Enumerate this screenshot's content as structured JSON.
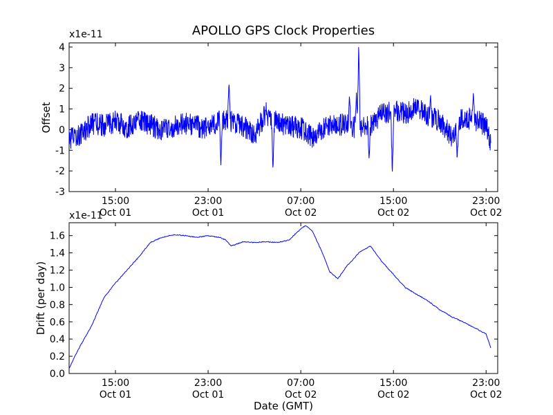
{
  "chart_data": [
    {
      "type": "line",
      "title": "APOLLO GPS Clock Properties",
      "xlabel": "",
      "ylabel": "Offset",
      "y_multiplier_label": "x1e-11",
      "ylim": [
        -3,
        4.2
      ],
      "yticks": [
        -3,
        -2,
        -1,
        0,
        1,
        2,
        3,
        4
      ],
      "xlim": [
        "2013-10-01 11:00",
        "2013-10-03 00:00"
      ],
      "xticks": [
        {
          "time": "2013-10-01 15:00",
          "label_time": "15:00",
          "label_date": "Oct 01"
        },
        {
          "time": "2013-10-01 23:00",
          "label_time": "23:00",
          "label_date": "Oct 01"
        },
        {
          "time": "2013-10-02 07:00",
          "label_time": "07:00",
          "label_date": "Oct 02"
        },
        {
          "time": "2013-10-02 15:00",
          "label_time": "15:00",
          "label_date": "Oct 02"
        },
        {
          "time": "2013-10-02 23:00",
          "label_time": "23:00",
          "label_date": "Oct 02"
        }
      ],
      "color": "#0000ff",
      "x_hours": [
        0,
        1,
        2,
        3,
        4,
        5,
        6,
        7,
        8,
        9,
        10,
        11,
        12,
        13,
        14,
        15,
        16,
        17,
        18,
        19,
        20,
        21,
        22,
        23,
        24,
        25,
        26,
        27,
        28,
        29,
        30,
        31,
        32,
        33,
        34,
        35,
        36,
        36.4
      ],
      "series_offset_smoothed": [
        -0.5,
        -0.2,
        0.3,
        0.2,
        0.4,
        0.1,
        0.5,
        0.2,
        0.0,
        0.1,
        0.3,
        0.2,
        0.0,
        0.5,
        0.4,
        0.2,
        -0.3,
        0.8,
        0.3,
        0.2,
        0.1,
        -0.4,
        0.1,
        0.2,
        0.3,
        0.0,
        0.2,
        0.8,
        0.9,
        0.8,
        1.1,
        0.7,
        0.4,
        -0.3,
        0.6,
        0.5,
        0.2,
        -0.7
      ],
      "spikes": [
        {
          "x_hours": 13.8,
          "y": 2.3
        },
        {
          "x_hours": 13.1,
          "y": -1.8
        },
        {
          "x_hours": 17.6,
          "y": -2.0
        },
        {
          "x_hours": 24.8,
          "y": 1.8
        },
        {
          "x_hours": 24.2,
          "y": 1.7
        },
        {
          "x_hours": 25.0,
          "y": 4.2
        },
        {
          "x_hours": 25.9,
          "y": -1.5
        },
        {
          "x_hours": 27.9,
          "y": -2.2
        },
        {
          "x_hours": 31.2,
          "y": 1.7
        },
        {
          "x_hours": 34.9,
          "y": 1.8
        },
        {
          "x_hours": 33.5,
          "y": -1.5
        }
      ]
    },
    {
      "type": "line",
      "title": "",
      "xlabel": "Date (GMT)",
      "ylabel": "Drift (per day)",
      "y_multiplier_label": "x1e-11",
      "ylim": [
        0.0,
        1.75
      ],
      "yticks": [
        0.0,
        0.2,
        0.4,
        0.6,
        0.8,
        1.0,
        1.2,
        1.4,
        1.6
      ],
      "xlim": [
        "2013-10-01 11:00",
        "2013-10-03 00:00"
      ],
      "xticks": [
        {
          "time": "2013-10-01 15:00",
          "label_time": "15:00",
          "label_date": "Oct 01"
        },
        {
          "time": "2013-10-01 23:00",
          "label_time": "23:00",
          "label_date": "Oct 01"
        },
        {
          "time": "2013-10-02 07:00",
          "label_time": "07:00",
          "label_date": "Oct 02"
        },
        {
          "time": "2013-10-02 15:00",
          "label_time": "15:00",
          "label_date": "Oct 02"
        },
        {
          "time": "2013-10-02 23:00",
          "label_time": "23:00",
          "label_date": "Oct 02"
        }
      ],
      "color": "#0000ff",
      "x_hours": [
        0,
        0.5,
        1,
        2,
        3,
        4,
        5,
        6,
        7,
        8,
        9,
        10,
        11,
        12,
        13,
        13.5,
        14,
        15,
        16,
        17,
        18,
        19,
        19.6,
        20.4,
        21,
        21.8,
        22.5,
        23.2,
        24,
        24.5,
        25,
        26,
        26.6,
        27,
        28,
        29,
        30,
        31,
        32,
        33,
        34,
        35,
        36,
        36.4
      ],
      "drift": [
        0.06,
        0.2,
        0.33,
        0.57,
        0.88,
        1.05,
        1.2,
        1.35,
        1.52,
        1.58,
        1.61,
        1.6,
        1.58,
        1.6,
        1.58,
        1.55,
        1.48,
        1.53,
        1.52,
        1.53,
        1.52,
        1.55,
        1.63,
        1.72,
        1.65,
        1.42,
        1.18,
        1.1,
        1.25,
        1.32,
        1.4,
        1.48,
        1.37,
        1.3,
        1.15,
        1.0,
        0.92,
        0.84,
        0.74,
        0.66,
        0.6,
        0.53,
        0.46,
        0.3
      ]
    }
  ]
}
